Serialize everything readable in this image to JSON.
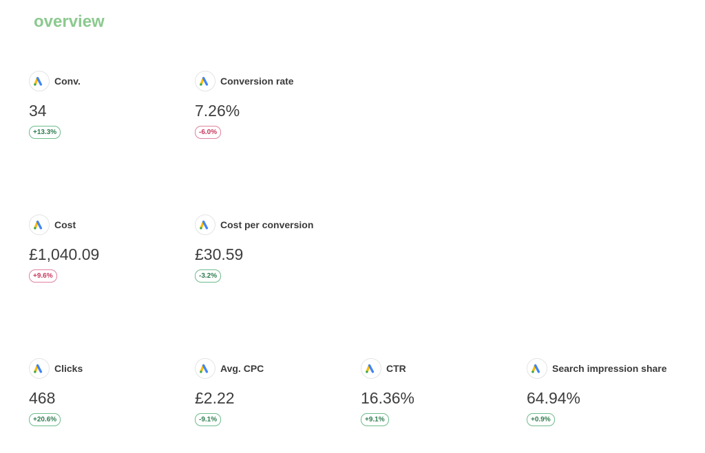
{
  "section": {
    "title": "overview"
  },
  "icon": "google-ads-logo",
  "colors": {
    "title": "#8cc98f",
    "positive": "#2f7d4f",
    "negative": "#c8385f"
  },
  "metrics": [
    {
      "label": "Conv.",
      "value": "34",
      "change": "+13.3%",
      "status": "good"
    },
    {
      "label": "Conversion rate",
      "value": "7.26%",
      "change": "-6.0%",
      "status": "bad"
    },
    {
      "label": "Cost",
      "value": "£1,040.09",
      "change": "+9.6%",
      "status": "bad"
    },
    {
      "label": "Cost per conversion",
      "value": "£30.59",
      "change": "-3.2%",
      "status": "good"
    },
    {
      "label": "Clicks",
      "value": "468",
      "change": "+20.6%",
      "status": "good"
    },
    {
      "label": "Avg. CPC",
      "value": "£2.22",
      "change": "-9.1%",
      "status": "good"
    },
    {
      "label": "CTR",
      "value": "16.36%",
      "change": "+9.1%",
      "status": "good"
    },
    {
      "label": "Search impression share",
      "value": "64.94%",
      "change": "+0.9%",
      "status": "good"
    }
  ]
}
